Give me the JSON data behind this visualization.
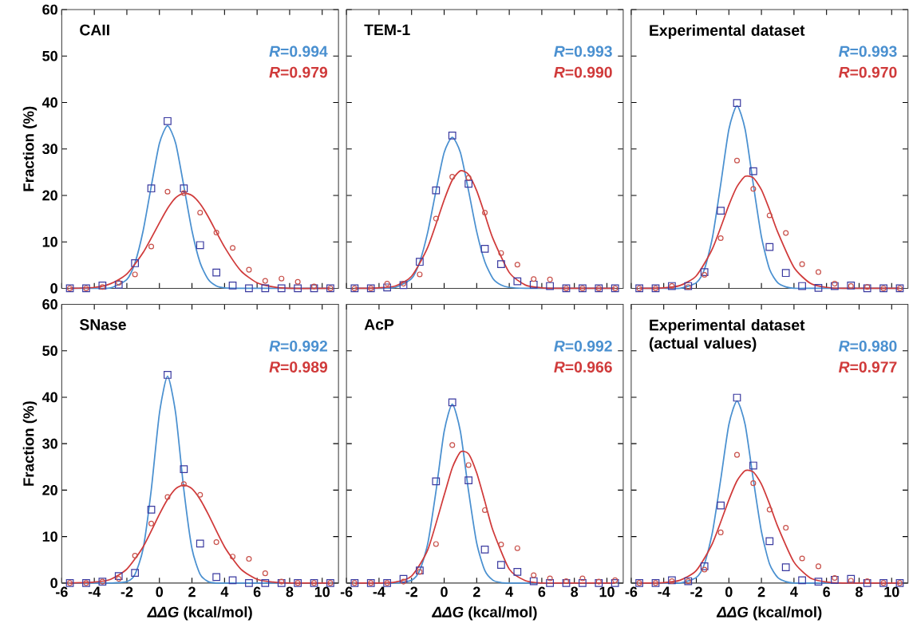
{
  "chart_data": [
    {
      "type": "scatter",
      "title": "CAII",
      "ylabel": "Fraction (%)",
      "xlim": [
        -6,
        11
      ],
      "ylim": [
        0,
        60
      ],
      "xticks": [
        -6,
        -4,
        -2,
        0,
        2,
        4,
        6,
        8,
        10
      ],
      "yticks": [
        0,
        10,
        20,
        30,
        40,
        50,
        60
      ],
      "tick_labels": "y",
      "annotations": [
        "*R*=0.994",
        "*R*=0.979"
      ],
      "x": [
        -5.5,
        -4.5,
        -3.5,
        -2.5,
        -1.5,
        -0.5,
        0.5,
        1.5,
        2.5,
        3.5,
        4.5,
        5.5,
        6.5,
        7.5,
        8.5,
        9.5,
        10.5
      ],
      "series": [
        {
          "type": "line",
          "color": "#4a90d0",
          "x": [
            -5.5,
            -4,
            -3,
            -2,
            -1.5,
            -1,
            -0.5,
            0,
            0.5,
            1,
            1.5,
            2,
            2.5,
            3,
            3.5,
            4,
            5,
            6,
            7,
            8,
            10.5
          ],
          "values": [
            0,
            0,
            0.1,
            1.9,
            5.5,
            12.4,
            22.0,
            31.2,
            35,
            31.2,
            22.0,
            12.4,
            5.5,
            1.9,
            0.5,
            0.1,
            0,
            0,
            0,
            0,
            0
          ]
        },
        {
          "type": "line",
          "color": "#d03a3a",
          "x": [
            -5.5,
            -4,
            -3,
            -2,
            -1,
            0,
            0.5,
            1,
            1.5,
            2,
            2.5,
            3,
            4,
            5,
            6,
            7,
            8,
            10.5
          ],
          "values": [
            0,
            0.2,
            1.0,
            3.1,
            7.7,
            14.1,
            17.2,
            19.5,
            20.5,
            20.0,
            18.2,
            15.4,
            8.9,
            3.8,
            1.2,
            0.3,
            0,
            0
          ]
        },
        {
          "type": "scatter",
          "marker": "square",
          "color": "#3a3aa0",
          "values": [
            0,
            0,
            0.6,
            0.8,
            5.4,
            21.5,
            36.0,
            21.5,
            9.3,
            3.4,
            0.6,
            0,
            0,
            0,
            0,
            0,
            0
          ]
        },
        {
          "type": "scatter",
          "marker": "circle",
          "color": "#c8504a",
          "values": [
            0,
            0,
            0.3,
            1.2,
            3.0,
            9.0,
            20.8,
            20.5,
            16.3,
            12.0,
            8.7,
            4.0,
            1.6,
            2.1,
            1.4,
            0.4,
            0
          ]
        }
      ]
    },
    {
      "type": "scatter",
      "title": "TEM-1",
      "xlim": [
        -6,
        11
      ],
      "ylim": [
        0,
        60
      ],
      "xticks": [
        -6,
        -4,
        -2,
        0,
        2,
        4,
        6,
        8,
        10
      ],
      "yticks": [
        0,
        10,
        20,
        30,
        40,
        50,
        60
      ],
      "tick_labels": false,
      "annotations": [
        "*R*=0.993",
        "*R*=0.990"
      ],
      "x": [
        -5.5,
        -4.5,
        -3.5,
        -2.5,
        -1.5,
        -0.5,
        0.5,
        1.5,
        2.5,
        3.5,
        4.5,
        5.5,
        6.5,
        7.5,
        8.5,
        9.5,
        10.5
      ],
      "series": [
        {
          "type": "line",
          "color": "#4a90d0",
          "x": [
            -5.5,
            -4,
            -3,
            -2,
            -1.5,
            -1,
            -0.5,
            0,
            0.5,
            1,
            1.5,
            2,
            2.5,
            3,
            3.5,
            4,
            5,
            6,
            7,
            8,
            10.5
          ],
          "values": [
            0,
            0,
            0.2,
            2.1,
            5.7,
            12.2,
            21.0,
            29.2,
            32.5,
            29.2,
            21.0,
            12.2,
            5.7,
            2.1,
            0.7,
            0.2,
            0,
            0,
            0,
            0,
            0
          ]
        },
        {
          "type": "line",
          "color": "#d03a3a",
          "x": [
            -5.5,
            -4,
            -3,
            -2,
            -1,
            0,
            0.5,
            1,
            1.5,
            2,
            2.5,
            3,
            4,
            5,
            6,
            7,
            8,
            10.5
          ],
          "values": [
            0,
            0.1,
            0.5,
            2.6,
            8.9,
            19.0,
            23.3,
            25.3,
            24.5,
            21.0,
            15.9,
            10.7,
            3.4,
            0.7,
            0.1,
            0,
            0,
            0
          ]
        },
        {
          "type": "scatter",
          "marker": "square",
          "color": "#3a3aa0",
          "values": [
            0,
            0,
            0.2,
            0.7,
            5.7,
            21.1,
            32.9,
            22.5,
            8.5,
            5.2,
            1.5,
            0.8,
            0.5,
            0,
            0,
            0,
            0
          ]
        },
        {
          "type": "scatter",
          "marker": "circle",
          "color": "#c8504a",
          "values": [
            0,
            0,
            1.0,
            1.0,
            3.0,
            15.0,
            24.0,
            23.8,
            16.3,
            7.6,
            5.1,
            2.0,
            1.9,
            0,
            0,
            0,
            0
          ]
        }
      ]
    },
    {
      "type": "scatter",
      "title": "Experimental dataset",
      "xlim": [
        -6,
        11
      ],
      "ylim": [
        0,
        60
      ],
      "xticks": [
        -6,
        -4,
        -2,
        0,
        2,
        4,
        6,
        8,
        10
      ],
      "yticks": [
        0,
        10,
        20,
        30,
        40,
        50,
        60
      ],
      "tick_labels": false,
      "annotations": [
        "*R*=0.993",
        "*R*=0.970"
      ],
      "x": [
        -5.5,
        -4.5,
        -3.5,
        -2.5,
        -1.5,
        -0.5,
        0.5,
        1.5,
        2.5,
        3.5,
        4.5,
        5.5,
        6.5,
        7.5,
        8.5,
        9.5,
        10.5
      ],
      "series": [
        {
          "type": "line",
          "color": "#4a90d0",
          "x": [
            -5.5,
            -4,
            -3,
            -2,
            -1.5,
            -1,
            -0.5,
            0,
            0.5,
            1,
            1.5,
            2,
            2.5,
            3,
            3.5,
            4,
            5,
            6,
            7,
            8,
            10.5
          ],
          "values": [
            0,
            0,
            0,
            1.2,
            4.1,
            11.1,
            22.4,
            34.2,
            39.3,
            34.2,
            22.4,
            11.1,
            4.1,
            1.2,
            0.3,
            0,
            0,
            0,
            0,
            0,
            0
          ]
        },
        {
          "type": "line",
          "color": "#d03a3a",
          "x": [
            -5.5,
            -4,
            -3,
            -2,
            -1,
            0,
            0.5,
            1,
            1.5,
            2,
            2.5,
            3,
            4,
            5,
            6,
            7,
            8,
            10.5
          ],
          "values": [
            0,
            0.1,
            0.6,
            2.7,
            8.6,
            17.9,
            21.9,
            24.1,
            23.8,
            21.2,
            16.9,
            12.1,
            4.5,
            1.1,
            0.2,
            0,
            0,
            0
          ]
        },
        {
          "type": "scatter",
          "marker": "square",
          "color": "#3a3aa0",
          "values": [
            0,
            0,
            0.5,
            0.5,
            3.5,
            16.7,
            39.9,
            25.2,
            8.9,
            3.3,
            0.5,
            0.1,
            0.5,
            0.6,
            0,
            0,
            0
          ]
        },
        {
          "type": "scatter",
          "marker": "circle",
          "color": "#c8504a",
          "values": [
            0,
            0,
            0.5,
            0.3,
            2.9,
            10.8,
            27.5,
            21.4,
            15.7,
            11.9,
            5.2,
            3.5,
            1.0,
            0.5,
            0.3,
            0,
            0
          ]
        }
      ]
    },
    {
      "type": "scatter",
      "title": "SNase",
      "xlabel": "*ΔΔG* (kcal/mol)",
      "ylabel": "Fraction (%)",
      "xlim": [
        -6,
        11
      ],
      "ylim": [
        0,
        60
      ],
      "xticks": [
        -6,
        -4,
        -2,
        0,
        2,
        4,
        6,
        8,
        10
      ],
      "yticks": [
        0,
        10,
        20,
        30,
        40,
        50,
        60
      ],
      "annotations": [
        "*R*=0.992",
        "*R*=0.989"
      ],
      "x": [
        -5.5,
        -4.5,
        -3.5,
        -2.5,
        -1.5,
        -0.5,
        0.5,
        1.5,
        2.5,
        3.5,
        4.5,
        5.5,
        6.5,
        7.5,
        8.5,
        9.5,
        10.5
      ],
      "series": [
        {
          "type": "line",
          "color": "#4a90d0",
          "x": [
            -5.5,
            -4,
            -3,
            -2,
            -1.5,
            -1,
            -0.5,
            0,
            0.5,
            1,
            1.5,
            2,
            2.5,
            3,
            3.5,
            4,
            5,
            6,
            7,
            8,
            10.5
          ],
          "values": [
            0,
            0,
            0,
            0.3,
            1.9,
            7.4,
            20.1,
            36.5,
            44.5,
            36.5,
            20.1,
            7.4,
            1.9,
            0.3,
            0,
            0,
            0,
            0,
            0,
            0,
            0
          ]
        },
        {
          "type": "line",
          "color": "#d03a3a",
          "x": [
            -5.5,
            -4,
            -3,
            -2,
            -1,
            0,
            0.5,
            1,
            1.5,
            2,
            2.5,
            3,
            4,
            5,
            6,
            7,
            8,
            10.5
          ],
          "values": [
            0,
            0.2,
            0.8,
            3.0,
            7.8,
            14.8,
            18.0,
            20.3,
            21.1,
            20.3,
            18.0,
            14.8,
            7.8,
            3.0,
            0.8,
            0.2,
            0,
            0
          ]
        },
        {
          "type": "scatter",
          "marker": "square",
          "color": "#3a3aa0",
          "values": [
            0,
            0,
            0.3,
            1.5,
            2.2,
            15.8,
            44.8,
            24.5,
            8.5,
            1.3,
            0.6,
            0,
            0,
            0,
            0,
            0,
            0
          ]
        },
        {
          "type": "scatter",
          "marker": "circle",
          "color": "#c8504a",
          "values": [
            0,
            0,
            0.3,
            0.9,
            5.9,
            12.8,
            18.5,
            21.3,
            19.0,
            8.8,
            5.7,
            5.2,
            2.1,
            0.3,
            0,
            0,
            0
          ]
        }
      ]
    },
    {
      "type": "scatter",
      "title": "AcP",
      "xlabel": "*ΔΔG* (kcal/mol)",
      "xlim": [
        -6,
        11
      ],
      "ylim": [
        0,
        60
      ],
      "xticks": [
        -6,
        -4,
        -2,
        0,
        2,
        4,
        6,
        8,
        10
      ],
      "yticks": [
        0,
        10,
        20,
        30,
        40,
        50,
        60
      ],
      "tick_labels": "x",
      "annotations": [
        "*R*=0.992",
        "*R*=0.966"
      ],
      "x": [
        -5.5,
        -4.5,
        -3.5,
        -2.5,
        -1.5,
        -0.5,
        0.5,
        1.5,
        2.5,
        3.5,
        4.5,
        5.5,
        6.5,
        7.5,
        8.5,
        9.5,
        10.5
      ],
      "series": [
        {
          "type": "line",
          "color": "#4a90d0",
          "x": [
            -5.5,
            -4,
            -3,
            -2,
            -1.5,
            -1,
            -0.5,
            0,
            0.5,
            1,
            1.5,
            2,
            2.5,
            3,
            3.5,
            4,
            5,
            6,
            7,
            8,
            10.5
          ],
          "values": [
            0,
            0,
            0,
            0.6,
            2.7,
            8.6,
            19.8,
            32.6,
            38.5,
            32.6,
            19.8,
            8.6,
            2.7,
            0.6,
            0.1,
            0,
            0,
            0,
            0,
            0,
            0
          ]
        },
        {
          "type": "line",
          "color": "#d03a3a",
          "x": [
            -5.5,
            -4,
            -3,
            -2,
            -1,
            0,
            0.5,
            1,
            1.5,
            2,
            2.5,
            3,
            4,
            5,
            6,
            7,
            8,
            10.5
          ],
          "values": [
            0,
            0,
            0.2,
            1.5,
            7.2,
            18.9,
            24.8,
            28.2,
            27.8,
            23.7,
            17.6,
            11.3,
            3.0,
            0.5,
            0,
            0,
            0,
            0
          ]
        },
        {
          "type": "scatter",
          "marker": "square",
          "color": "#3a3aa0",
          "values": [
            0,
            0,
            0,
            0.9,
            2.7,
            21.9,
            38.9,
            22.1,
            7.2,
            3.9,
            2.4,
            0.4,
            0,
            0,
            0,
            0,
            0
          ]
        },
        {
          "type": "scatter",
          "marker": "circle",
          "color": "#c8504a",
          "values": [
            0,
            0,
            0,
            0.3,
            2.4,
            8.4,
            29.7,
            25.4,
            15.7,
            8.3,
            7.5,
            1.7,
            1.0,
            0.4,
            1.0,
            0.3,
            0.6
          ]
        }
      ]
    },
    {
      "type": "scatter",
      "title": "Experimental dataset (actual values)",
      "xlabel": "*ΔΔG* (kcal/mol)",
      "xlim": [
        -6,
        11
      ],
      "ylim": [
        0,
        60
      ],
      "xticks": [
        -6,
        -4,
        -2,
        0,
        2,
        4,
        6,
        8,
        10
      ],
      "yticks": [
        0,
        10,
        20,
        30,
        40,
        50,
        60
      ],
      "tick_labels": "x",
      "annotations": [
        "*R*=0.980",
        "*R*=0.977"
      ],
      "x": [
        -5.5,
        -4.5,
        -3.5,
        -2.5,
        -1.5,
        -0.5,
        0.5,
        1.5,
        2.5,
        3.5,
        4.5,
        5.5,
        6.5,
        7.5,
        8.5,
        9.5,
        10.5
      ],
      "series": [
        {
          "type": "line",
          "color": "#4a90d0",
          "x": [
            -5.5,
            -4,
            -3,
            -2,
            -1.5,
            -1,
            -0.5,
            0,
            0.5,
            1,
            1.5,
            2,
            2.5,
            3,
            3.5,
            4,
            5,
            6,
            7,
            8,
            10.5
          ],
          "values": [
            0,
            0,
            0,
            1.2,
            4.1,
            11.1,
            22.3,
            34.1,
            39.2,
            34.1,
            22.3,
            11.1,
            4.1,
            1.2,
            0.3,
            0,
            0,
            0,
            0,
            0,
            0
          ]
        },
        {
          "type": "line",
          "color": "#d03a3a",
          "x": [
            -5.5,
            -4,
            -3,
            -2,
            -1,
            0,
            0.5,
            1,
            1.5,
            2,
            2.5,
            3,
            4,
            5,
            6,
            7,
            8,
            10.5
          ],
          "values": [
            0,
            0.1,
            0.6,
            2.7,
            8.6,
            17.9,
            22.0,
            24.2,
            23.9,
            21.3,
            17.0,
            12.2,
            4.5,
            1.1,
            0.2,
            0,
            0,
            0
          ]
        },
        {
          "type": "scatter",
          "marker": "square",
          "color": "#3a3aa0",
          "values": [
            0,
            0,
            0.6,
            0.4,
            3.6,
            16.7,
            39.9,
            25.3,
            9.0,
            3.4,
            0.6,
            0.3,
            0.7,
            0.9,
            0,
            0,
            0
          ]
        },
        {
          "type": "scatter",
          "marker": "circle",
          "color": "#c8504a",
          "values": [
            0,
            0,
            0.4,
            0.4,
            2.9,
            10.9,
            27.6,
            21.5,
            15.8,
            11.9,
            5.3,
            3.6,
            1.1,
            0.5,
            0.4,
            0,
            0
          ]
        }
      ]
    }
  ]
}
